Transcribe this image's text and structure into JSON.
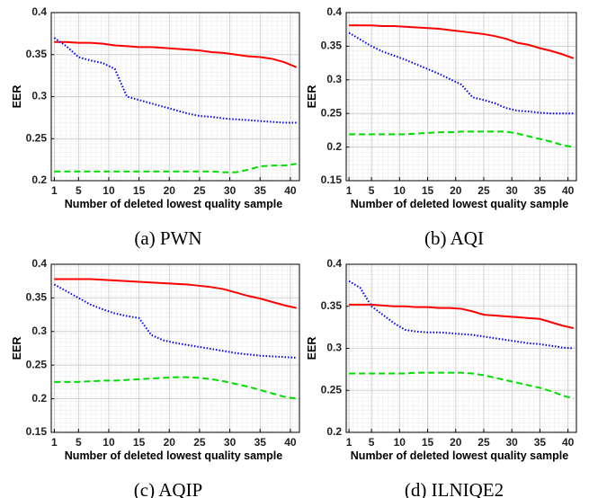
{
  "chart_data": [
    {
      "type": "line",
      "caption": "(a) PWN",
      "xlabel": "Number of deleted lowest quality sample",
      "ylabel": "EER",
      "x": [
        1,
        3,
        5,
        7,
        9,
        11,
        13,
        15,
        17,
        19,
        21,
        23,
        25,
        27,
        29,
        31,
        33,
        35,
        37,
        39,
        41
      ],
      "xlim": [
        0.5,
        41.5
      ],
      "xticks": [
        1,
        5,
        10,
        15,
        20,
        25,
        30,
        35,
        40
      ],
      "ylim": [
        0.2,
        0.4
      ],
      "yticks": [
        0.2,
        0.25,
        0.3,
        0.35,
        0.4
      ],
      "grid": true,
      "series": [
        {
          "color": "#ff0000",
          "style": "solid",
          "values": [
            0.365,
            0.365,
            0.364,
            0.364,
            0.363,
            0.361,
            0.36,
            0.359,
            0.359,
            0.358,
            0.357,
            0.356,
            0.355,
            0.353,
            0.352,
            0.35,
            0.348,
            0.347,
            0.345,
            0.341,
            0.335
          ]
        },
        {
          "color": "#0000ff",
          "style": "dotted",
          "values": [
            0.37,
            0.36,
            0.347,
            0.343,
            0.34,
            0.333,
            0.3,
            0.296,
            0.292,
            0.288,
            0.284,
            0.28,
            0.277,
            0.276,
            0.274,
            0.273,
            0.272,
            0.271,
            0.27,
            0.269,
            0.269
          ]
        },
        {
          "color": "#00dd00",
          "style": "dashed",
          "values": [
            0.211,
            0.211,
            0.211,
            0.211,
            0.211,
            0.211,
            0.211,
            0.211,
            0.211,
            0.211,
            0.211,
            0.211,
            0.211,
            0.211,
            0.21,
            0.21,
            0.213,
            0.217,
            0.218,
            0.218,
            0.22
          ]
        }
      ]
    },
    {
      "type": "line",
      "caption": "(b) AQI",
      "xlabel": "Number of deleted lowest quality sample",
      "ylabel": "EER",
      "x": [
        1,
        3,
        5,
        7,
        9,
        11,
        13,
        15,
        17,
        19,
        21,
        23,
        25,
        27,
        29,
        31,
        33,
        35,
        37,
        39,
        41
      ],
      "xlim": [
        0.5,
        41.5
      ],
      "xticks": [
        1,
        5,
        10,
        15,
        20,
        25,
        30,
        35,
        40
      ],
      "ylim": [
        0.15,
        0.4
      ],
      "yticks": [
        0.15,
        0.2,
        0.25,
        0.3,
        0.35,
        0.4
      ],
      "grid": true,
      "series": [
        {
          "color": "#ff0000",
          "style": "solid",
          "values": [
            0.381,
            0.381,
            0.381,
            0.38,
            0.38,
            0.379,
            0.378,
            0.377,
            0.376,
            0.374,
            0.372,
            0.37,
            0.368,
            0.365,
            0.361,
            0.355,
            0.352,
            0.347,
            0.343,
            0.338,
            0.332
          ]
        },
        {
          "color": "#0000ff",
          "style": "dotted",
          "values": [
            0.37,
            0.36,
            0.35,
            0.342,
            0.336,
            0.33,
            0.323,
            0.316,
            0.309,
            0.301,
            0.293,
            0.274,
            0.27,
            0.265,
            0.258,
            0.254,
            0.253,
            0.251,
            0.25,
            0.25,
            0.25
          ]
        },
        {
          "color": "#00dd00",
          "style": "dashed",
          "values": [
            0.219,
            0.219,
            0.219,
            0.219,
            0.219,
            0.219,
            0.22,
            0.221,
            0.222,
            0.222,
            0.223,
            0.223,
            0.223,
            0.223,
            0.223,
            0.22,
            0.216,
            0.212,
            0.208,
            0.203,
            0.2
          ]
        }
      ]
    },
    {
      "type": "line",
      "caption": "(c) AQIP",
      "xlabel": "Number of deleted lowest quality sample",
      "ylabel": "EER",
      "x": [
        1,
        3,
        5,
        7,
        9,
        11,
        13,
        15,
        17,
        19,
        21,
        23,
        25,
        27,
        29,
        31,
        33,
        35,
        37,
        39,
        41
      ],
      "xlim": [
        0.5,
        41.5
      ],
      "xticks": [
        1,
        5,
        10,
        15,
        20,
        25,
        30,
        35,
        40
      ],
      "ylim": [
        0.15,
        0.4
      ],
      "yticks": [
        0.15,
        0.2,
        0.25,
        0.3,
        0.35,
        0.4
      ],
      "grid": true,
      "series": [
        {
          "color": "#ff0000",
          "style": "solid",
          "values": [
            0.378,
            0.378,
            0.378,
            0.378,
            0.377,
            0.376,
            0.375,
            0.374,
            0.373,
            0.372,
            0.371,
            0.37,
            0.368,
            0.366,
            0.363,
            0.358,
            0.353,
            0.349,
            0.344,
            0.339,
            0.335
          ]
        },
        {
          "color": "#0000ff",
          "style": "dotted",
          "values": [
            0.37,
            0.36,
            0.35,
            0.34,
            0.333,
            0.327,
            0.323,
            0.32,
            0.295,
            0.287,
            0.283,
            0.28,
            0.277,
            0.274,
            0.271,
            0.268,
            0.266,
            0.264,
            0.263,
            0.262,
            0.261
          ]
        },
        {
          "color": "#00dd00",
          "style": "dashed",
          "values": [
            0.225,
            0.225,
            0.225,
            0.226,
            0.227,
            0.227,
            0.228,
            0.229,
            0.23,
            0.231,
            0.232,
            0.232,
            0.231,
            0.229,
            0.226,
            0.222,
            0.218,
            0.213,
            0.208,
            0.203,
            0.2
          ]
        }
      ]
    },
    {
      "type": "line",
      "caption": "(d) ILNIQE2",
      "xlabel": "Number of deleted lowest quality sample",
      "ylabel": "EER",
      "x": [
        1,
        3,
        5,
        7,
        9,
        11,
        13,
        15,
        17,
        19,
        21,
        23,
        25,
        27,
        29,
        31,
        33,
        35,
        37,
        39,
        41
      ],
      "xlim": [
        0.5,
        41.5
      ],
      "xticks": [
        1,
        5,
        10,
        15,
        20,
        25,
        30,
        35,
        40
      ],
      "ylim": [
        0.2,
        0.4
      ],
      "yticks": [
        0.2,
        0.25,
        0.3,
        0.35,
        0.4
      ],
      "grid": true,
      "series": [
        {
          "color": "#ff0000",
          "style": "solid",
          "values": [
            0.352,
            0.352,
            0.352,
            0.351,
            0.35,
            0.35,
            0.349,
            0.349,
            0.348,
            0.348,
            0.347,
            0.344,
            0.34,
            0.339,
            0.338,
            0.337,
            0.336,
            0.335,
            0.331,
            0.327,
            0.324
          ]
        },
        {
          "color": "#0000ff",
          "style": "dotted",
          "values": [
            0.38,
            0.372,
            0.35,
            0.34,
            0.33,
            0.322,
            0.32,
            0.319,
            0.319,
            0.318,
            0.317,
            0.316,
            0.314,
            0.312,
            0.31,
            0.308,
            0.306,
            0.305,
            0.303,
            0.301,
            0.3
          ]
        },
        {
          "color": "#00dd00",
          "style": "dashed",
          "values": [
            0.27,
            0.27,
            0.27,
            0.27,
            0.27,
            0.27,
            0.271,
            0.271,
            0.271,
            0.271,
            0.271,
            0.27,
            0.268,
            0.265,
            0.262,
            0.259,
            0.256,
            0.253,
            0.249,
            0.244,
            0.24
          ]
        }
      ]
    }
  ]
}
